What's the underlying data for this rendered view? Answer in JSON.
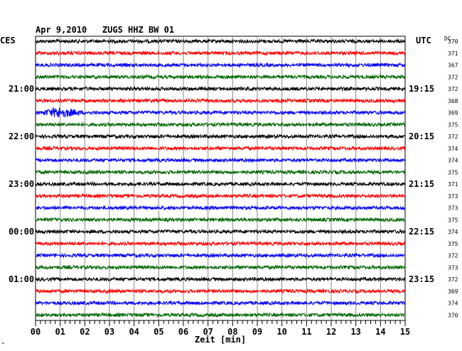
{
  "header": {
    "title": "Apr 9,2010   ZUGS HHZ BW 01",
    "left_zone": "CES",
    "right_zone": "UTC",
    "dc_label": "DC"
  },
  "footer": {
    "xlabel": "Zeit [min]",
    "corner_mark": "\""
  },
  "chart_data": {
    "type": "line",
    "title": "Apr 9,2010   ZUGS HHZ BW 01",
    "xlabel": "Zeit [min]",
    "xlim": [
      0,
      15
    ],
    "x_ticks": [
      "00",
      "01",
      "02",
      "03",
      "04",
      "05",
      "06",
      "07",
      "08",
      "09",
      "10",
      "11",
      "12",
      "13",
      "14",
      "15"
    ],
    "grid": true,
    "trace_colors": [
      "#000000",
      "#ff0000",
      "#0000ff",
      "#006600"
    ],
    "left_time_labels": [
      {
        "trace": 4,
        "label": "21:00"
      },
      {
        "trace": 8,
        "label": "22:00"
      },
      {
        "trace": 12,
        "label": "23:00"
      },
      {
        "trace": 16,
        "label": "00:00"
      },
      {
        "trace": 20,
        "label": "01:00"
      }
    ],
    "right_time_labels": [
      {
        "trace": 4,
        "label": "19:15"
      },
      {
        "trace": 8,
        "label": "20:15"
      },
      {
        "trace": 12,
        "label": "21:15"
      },
      {
        "trace": 16,
        "label": "22:15"
      },
      {
        "trace": 20,
        "label": "23:15"
      }
    ],
    "dc_offsets": [
      370,
      371,
      367,
      372,
      372,
      368,
      369,
      375,
      372,
      374,
      374,
      375,
      371,
      373,
      373,
      375,
      374,
      375,
      372,
      373,
      372,
      369,
      374,
      370
    ],
    "event": {
      "trace": 6,
      "start_min": 0.2,
      "end_min": 2.0,
      "peak_min": 0.9
    }
  }
}
